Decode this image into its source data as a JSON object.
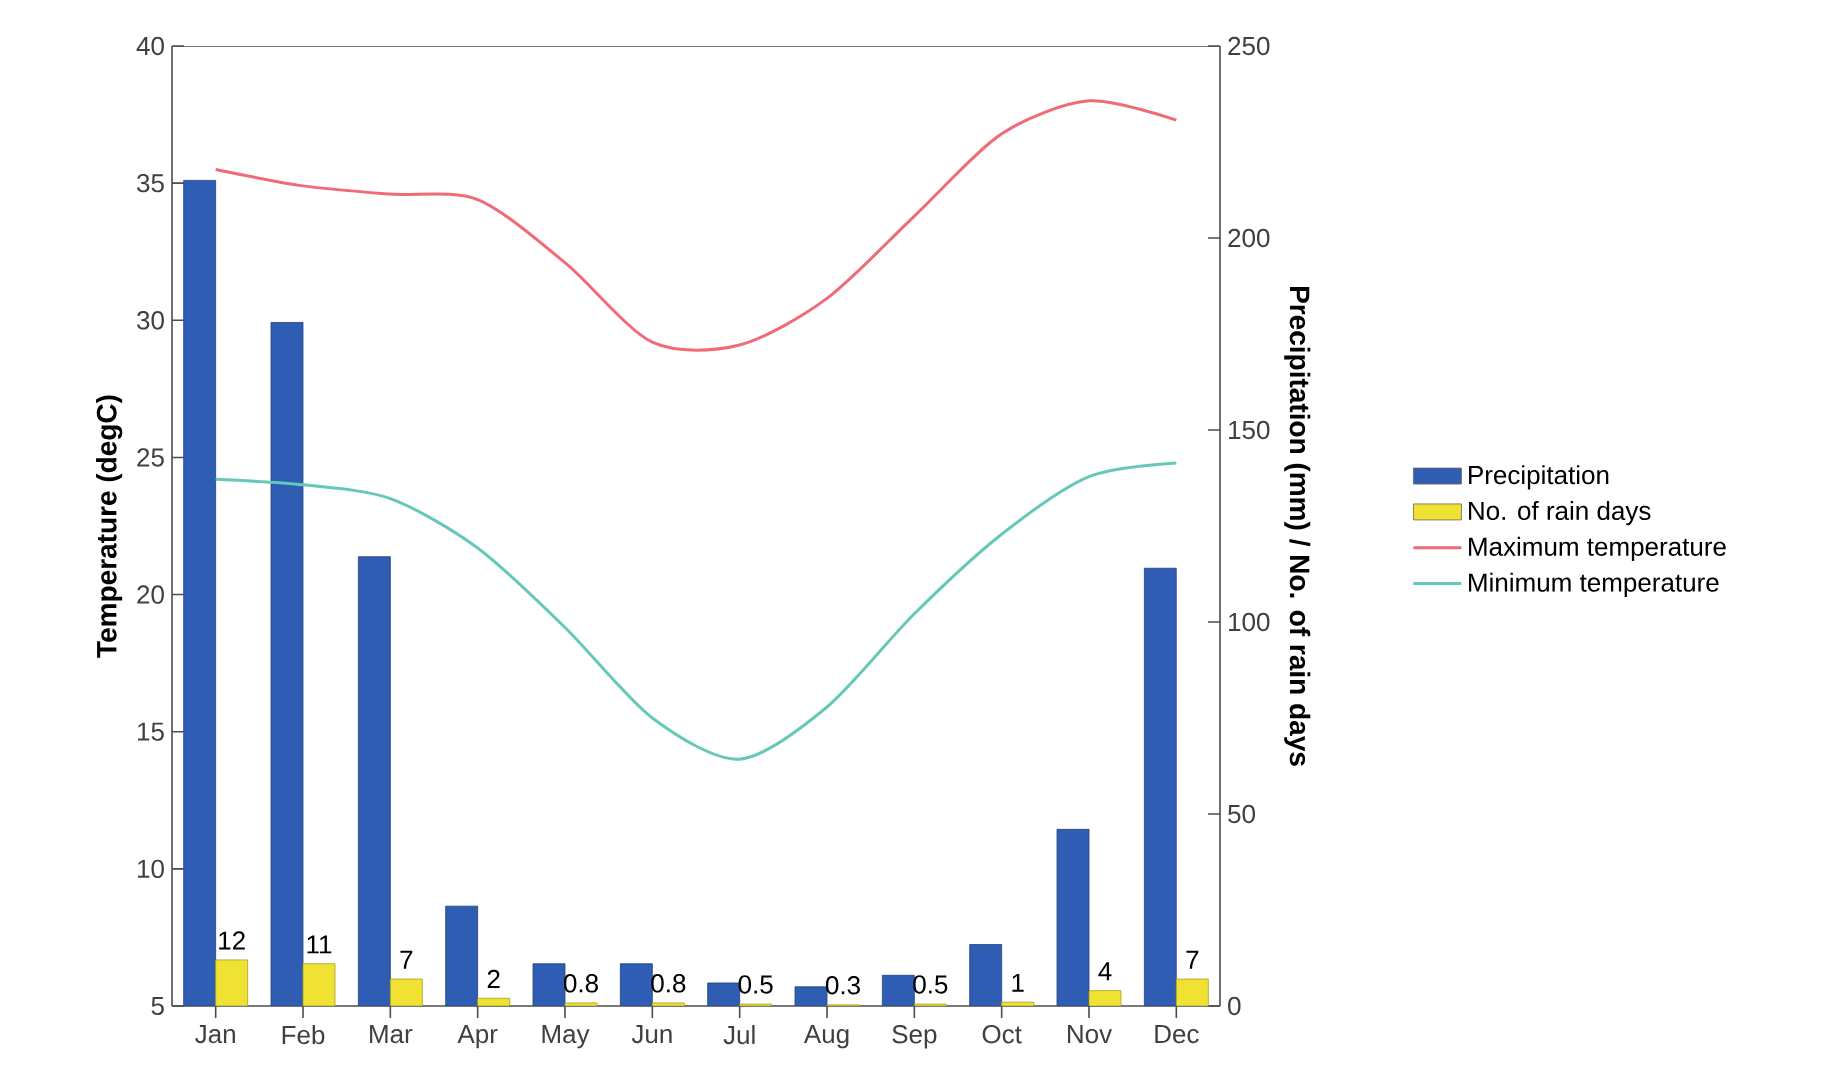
{
  "chart_data": {
    "type": "bar",
    "categories": [
      "Jan",
      "Feb",
      "Mar",
      "Apr",
      "May",
      "Jun",
      "Jul",
      "Aug",
      "Sep",
      "Oct",
      "Nov",
      "Dec"
    ],
    "ylabel": "Temperature (degC)",
    "y2label": "Precipitation (mm) / No. of rain days",
    "ylim": [
      5,
      40
    ],
    "yticks": [
      5,
      10,
      15,
      20,
      25,
      30,
      35,
      40
    ],
    "y2lim": [
      0,
      250
    ],
    "y2ticks": [
      0,
      50,
      100,
      150,
      200,
      250
    ],
    "legend": "right",
    "marker": "none",
    "series": [
      {
        "name": "Precipitation",
        "axis": "y2",
        "color": "#2f5db3",
        "values": [
          215,
          178,
          117,
          26,
          11,
          11,
          6,
          5,
          8,
          16,
          46,
          114
        ]
      },
      {
        "name": "No. of rain days",
        "axis": "y2",
        "color": "#f0e232",
        "values": [
          12,
          11,
          7,
          2,
          0.8,
          0.8,
          0.5,
          0.3,
          0.5,
          1,
          4,
          7
        ],
        "value_labels": [
          "12",
          "11",
          "7",
          "2",
          "0.8",
          "0.8",
          "0.5",
          "0.3",
          "0.5",
          "1",
          "4",
          "7"
        ]
      },
      {
        "name": "Maximum temperature",
        "type": "line",
        "color": "#f06a78",
        "values": [
          35.5,
          34.9,
          34.6,
          34.4,
          32.1,
          29.2,
          29.1,
          30.8,
          33.8,
          36.8,
          38.0,
          37.3
        ]
      },
      {
        "name": "Minimum temperature",
        "type": "line",
        "color": "#66c8b8",
        "values": [
          24.2,
          24.0,
          23.5,
          21.7,
          18.8,
          15.5,
          14.0,
          15.9,
          19.3,
          22.2,
          24.3,
          24.8
        ]
      }
    ]
  }
}
